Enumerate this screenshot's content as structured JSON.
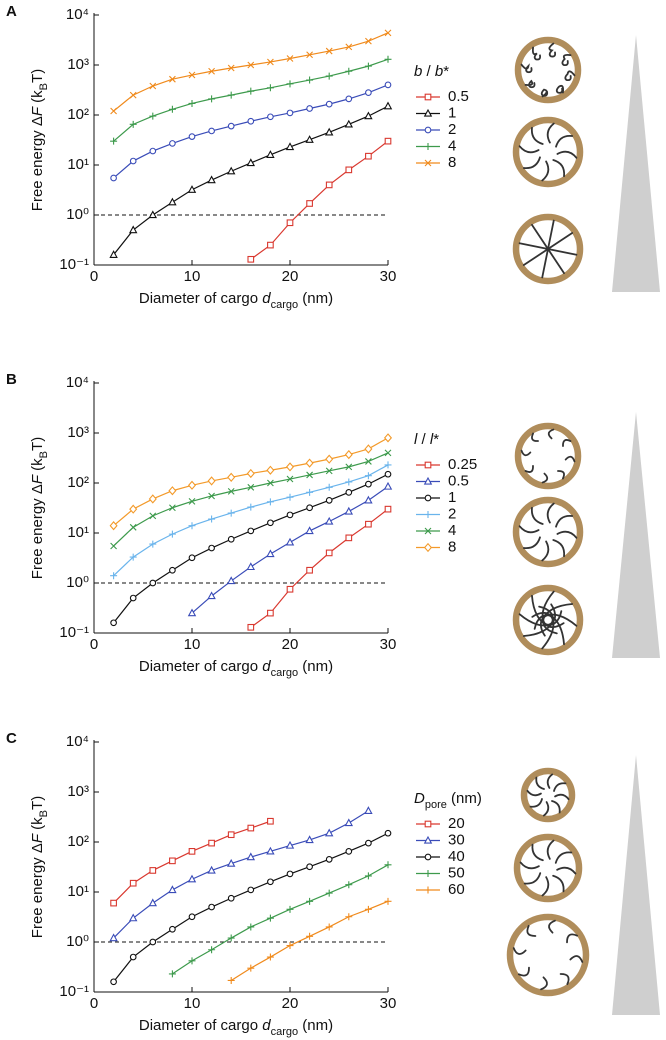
{
  "chart_data": [
    {
      "type": "line",
      "panel": "A",
      "log_y": true,
      "xlabel": [
        "Diameter of cargo ",
        "d",
        "cargo",
        " (nm)"
      ],
      "ylabel": [
        "Free energy Δ",
        "F",
        " (k",
        "B",
        "T)"
      ],
      "legend_title": [
        "b",
        " / ",
        "b",
        "*"
      ],
      "x": [
        2,
        4,
        6,
        8,
        10,
        12,
        14,
        16,
        18,
        20,
        22,
        24,
        26,
        28,
        30
      ],
      "xlim": [
        0,
        30
      ],
      "xticks": [
        0,
        10,
        20,
        30
      ],
      "ylim": [
        0.1,
        10000
      ],
      "yticks": [
        {
          "value": 0.1,
          "label": "10⁻¹"
        },
        {
          "value": 1,
          "label": "10⁰"
        },
        {
          "value": 10,
          "label": "10¹"
        },
        {
          "value": 100,
          "label": "10²"
        },
        {
          "value": 1000,
          "label": "10³"
        },
        {
          "value": 10000,
          "label": "10⁴"
        }
      ],
      "hline": 1,
      "series": [
        {
          "name": "0.5",
          "color": "#d9382f",
          "marker": "square",
          "values": [
            null,
            null,
            null,
            null,
            null,
            null,
            null,
            0.13,
            0.25,
            0.7,
            1.7,
            4,
            8,
            15,
            30
          ]
        },
        {
          "name": "1",
          "color": "#111111",
          "marker": "triangle",
          "values": [
            0.16,
            0.5,
            1.0,
            1.8,
            3.2,
            5,
            7.5,
            11,
            16,
            23,
            32,
            45,
            65,
            95,
            150
          ]
        },
        {
          "name": "2",
          "color": "#3a4cb8",
          "marker": "circle",
          "values": [
            5.5,
            12,
            19,
            27,
            37,
            48,
            60,
            75,
            92,
            110,
            135,
            165,
            210,
            280,
            400
          ]
        },
        {
          "name": "4",
          "color": "#3d9a4c",
          "marker": "plus",
          "values": [
            30,
            65,
            95,
            130,
            170,
            210,
            250,
            300,
            350,
            420,
            500,
            600,
            750,
            950,
            1300
          ]
        },
        {
          "name": "8",
          "color": "#f08a1c",
          "marker": "x",
          "values": [
            120,
            250,
            380,
            520,
            630,
            750,
            870,
            1000,
            1150,
            1350,
            1600,
            1900,
            2300,
            3000,
            4400
          ]
        }
      ]
    },
    {
      "type": "line",
      "panel": "B",
      "log_y": true,
      "xlabel": [
        "Diameter of cargo ",
        "d",
        "cargo",
        " (nm)"
      ],
      "ylabel": [
        "Free energy Δ",
        "F",
        " (k",
        "B",
        "T)"
      ],
      "legend_title": [
        "l",
        " / ",
        "l",
        "*"
      ],
      "x": [
        2,
        4,
        6,
        8,
        10,
        12,
        14,
        16,
        18,
        20,
        22,
        24,
        26,
        28,
        30
      ],
      "xlim": [
        0,
        30
      ],
      "xticks": [
        0,
        10,
        20,
        30
      ],
      "ylim": [
        0.1,
        10000
      ],
      "yticks": [
        {
          "value": 0.1,
          "label": "10⁻¹"
        },
        {
          "value": 1,
          "label": "10⁰"
        },
        {
          "value": 10,
          "label": "10¹"
        },
        {
          "value": 100,
          "label": "10²"
        },
        {
          "value": 1000,
          "label": "10³"
        },
        {
          "value": 10000,
          "label": "10⁴"
        }
      ],
      "hline": 1,
      "series": [
        {
          "name": "0.25",
          "color": "#d9382f",
          "marker": "square",
          "values": [
            null,
            null,
            null,
            null,
            null,
            null,
            null,
            0.13,
            0.25,
            0.75,
            1.8,
            4,
            8,
            15,
            30
          ]
        },
        {
          "name": "0.5",
          "color": "#3a4cb8",
          "marker": "triangle",
          "values": [
            null,
            null,
            null,
            null,
            0.25,
            0.55,
            1.1,
            2.1,
            3.8,
            6.5,
            11,
            17,
            27,
            45,
            85
          ]
        },
        {
          "name": "1",
          "color": "#111111",
          "marker": "circle",
          "values": [
            0.16,
            0.5,
            1.0,
            1.8,
            3.2,
            5,
            7.5,
            11,
            16,
            23,
            32,
            45,
            65,
            95,
            150
          ]
        },
        {
          "name": "2",
          "color": "#6ab4ec",
          "marker": "plus",
          "values": [
            1.4,
            3.3,
            6,
            9.5,
            14,
            19,
            25,
            33,
            42,
            52,
            65,
            82,
            105,
            140,
            230
          ]
        },
        {
          "name": "4",
          "color": "#3d9a4c",
          "marker": "x",
          "values": [
            5.5,
            13,
            22,
            32,
            43,
            55,
            68,
            82,
            100,
            120,
            145,
            175,
            210,
            270,
            400
          ]
        },
        {
          "name": "8",
          "color": "#f39a2a",
          "marker": "diamond",
          "values": [
            14,
            30,
            48,
            70,
            90,
            110,
            130,
            155,
            180,
            210,
            250,
            300,
            370,
            480,
            800
          ]
        }
      ]
    },
    {
      "type": "line",
      "panel": "C",
      "log_y": true,
      "xlabel": [
        "Diameter of cargo ",
        "d",
        "cargo",
        " (nm)"
      ],
      "ylabel": [
        "Free energy Δ",
        "F",
        " (k",
        "B",
        "T)"
      ],
      "legend_title": [
        "D",
        "pore",
        " (nm)"
      ],
      "x": [
        2,
        4,
        6,
        8,
        10,
        12,
        14,
        16,
        18,
        20,
        22,
        24,
        26,
        28,
        30
      ],
      "xlim": [
        0,
        30
      ],
      "xticks": [
        0,
        10,
        20,
        30
      ],
      "ylim": [
        0.1,
        10000
      ],
      "yticks": [
        {
          "value": 0.1,
          "label": "10⁻¹"
        },
        {
          "value": 1,
          "label": "10⁰"
        },
        {
          "value": 10,
          "label": "10¹"
        },
        {
          "value": 100,
          "label": "10²"
        },
        {
          "value": 1000,
          "label": "10³"
        },
        {
          "value": 10000,
          "label": "10⁴"
        }
      ],
      "hline": 1,
      "series": [
        {
          "name": "20",
          "color": "#d9382f",
          "marker": "square",
          "values": [
            6,
            15,
            27,
            42,
            65,
            95,
            140,
            190,
            260,
            null,
            null,
            null,
            null,
            null,
            null
          ]
        },
        {
          "name": "30",
          "color": "#3a4cb8",
          "marker": "triangle",
          "values": [
            1.2,
            3,
            6,
            11,
            18,
            27,
            37,
            50,
            65,
            85,
            110,
            150,
            240,
            420,
            null
          ]
        },
        {
          "name": "40",
          "color": "#111111",
          "marker": "circle",
          "values": [
            0.16,
            0.5,
            1.0,
            1.8,
            3.2,
            5,
            7.5,
            11,
            16,
            23,
            32,
            45,
            65,
            95,
            150
          ]
        },
        {
          "name": "50",
          "color": "#3d9a4c",
          "marker": "plus",
          "values": [
            null,
            null,
            null,
            0.23,
            0.42,
            0.7,
            1.2,
            2,
            3,
            4.5,
            6.5,
            9.5,
            14,
            21,
            35
          ]
        },
        {
          "name": "60",
          "color": "#f08a1c",
          "marker": "plus",
          "values": [
            null,
            null,
            null,
            null,
            null,
            null,
            0.17,
            0.3,
            0.5,
            0.85,
            1.3,
            2,
            3.2,
            4.5,
            6.5
          ]
        }
      ]
    }
  ]
}
